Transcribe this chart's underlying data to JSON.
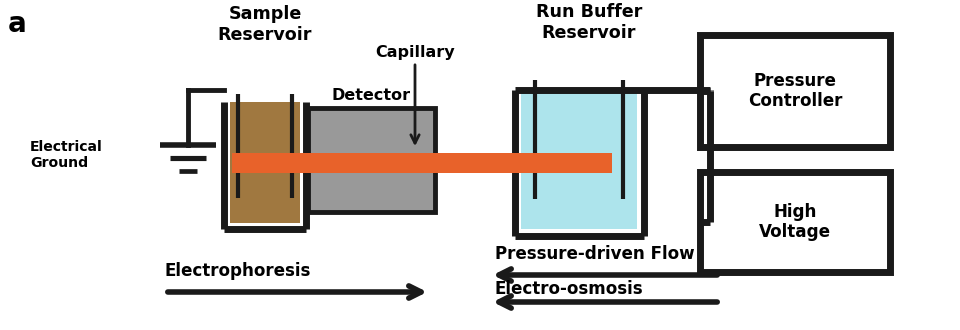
{
  "bg_color": "#ffffff",
  "label_a": "a",
  "sample_reservoir_label": "Sample\nReservoir",
  "detector_label": "Detector",
  "capillary_label": "Capillary",
  "run_buffer_label": "Run Buffer\nReservoir",
  "pressure_controller_label": "Pressure\nController",
  "high_voltage_label": "High\nVoltage",
  "electrical_ground_label": "Electrical\nGround",
  "electrophoresis_label": "Electrophoresis",
  "pressure_driven_label": "Pressure-driven Flow",
  "electro_osmosis_label": "Electro-osmosis",
  "sample_color": "#A07840",
  "buffer_color": "#ADE4EC",
  "capillary_color": "#E8622A",
  "ec": "#1a1a1a",
  "lw_thick": 5.0,
  "lw_med": 3.5,
  "lw_thin": 2.5,
  "font_size": 11.5
}
